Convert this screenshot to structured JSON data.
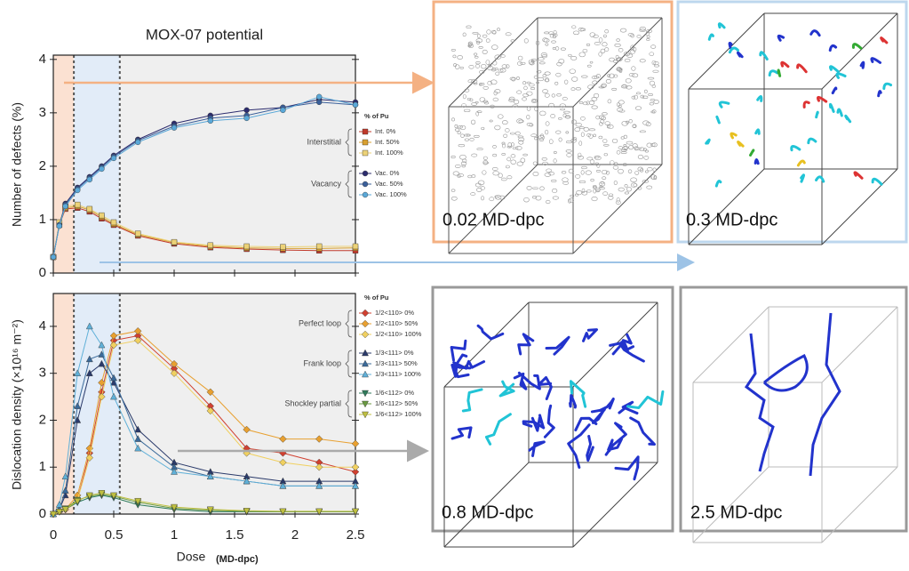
{
  "chart_data": [
    {
      "type": "line",
      "title": "MOX-07 potential",
      "ylabel": "Number of defects (%)",
      "x": [
        0,
        0.05,
        0.1,
        0.2,
        0.3,
        0.4,
        0.5,
        0.7,
        1.0,
        1.3,
        1.6,
        1.9,
        2.2,
        2.5
      ],
      "xlim": [
        0,
        2.5
      ],
      "xticks": [
        0,
        0.5,
        1,
        1.5,
        2,
        2.5
      ],
      "ylim": [
        0,
        4.08
      ],
      "yticks": [
        0,
        1,
        2,
        3,
        4
      ],
      "shaded_regions": [
        {
          "from": 0,
          "to": 0.17,
          "color": "#fbe1d2"
        },
        {
          "from": 0.17,
          "to": 0.55,
          "color": "#e2ecf8"
        },
        {
          "from": 0.55,
          "to": 2.5,
          "color": "#efefef"
        }
      ],
      "vlines": [
        0.17,
        0.55
      ],
      "legend_title": "% of Pu",
      "legend_groups": [
        "Interstitial",
        "Vacancy"
      ],
      "series": [
        {
          "name": "Int. 0%",
          "color": "#c0392b",
          "marker": "square",
          "values": [
            0.3,
            0.9,
            1.2,
            1.22,
            1.15,
            1.02,
            0.9,
            0.7,
            0.55,
            0.48,
            0.45,
            0.43,
            0.42,
            0.42
          ]
        },
        {
          "name": "Int. 50%",
          "color": "#d9a030",
          "marker": "square",
          "values": [
            0.3,
            0.92,
            1.22,
            1.25,
            1.18,
            1.05,
            0.92,
            0.72,
            0.57,
            0.5,
            0.47,
            0.46,
            0.46,
            0.47
          ]
        },
        {
          "name": "Int. 100%",
          "color": "#ecd277",
          "marker": "square",
          "values": [
            0.3,
            0.95,
            1.25,
            1.28,
            1.2,
            1.08,
            0.95,
            0.74,
            0.58,
            0.52,
            0.5,
            0.49,
            0.5,
            0.5
          ]
        },
        {
          "name": "Vac. 0%",
          "color": "#2c2c6e",
          "marker": "circle",
          "values": [
            0.3,
            0.9,
            1.3,
            1.6,
            1.8,
            2.0,
            2.2,
            2.5,
            2.8,
            2.95,
            3.05,
            3.1,
            3.25,
            3.2
          ]
        },
        {
          "name": "Vac. 50%",
          "color": "#3a5f9a",
          "marker": "circle",
          "values": [
            0.3,
            0.9,
            1.28,
            1.58,
            1.78,
            1.98,
            2.18,
            2.48,
            2.75,
            2.9,
            2.95,
            3.1,
            3.2,
            3.15
          ]
        },
        {
          "name": "Vac. 100%",
          "color": "#5aa8d8",
          "marker": "circle",
          "values": [
            0.3,
            0.88,
            1.25,
            1.55,
            1.75,
            1.95,
            2.15,
            2.45,
            2.72,
            2.85,
            2.9,
            3.05,
            3.3,
            3.15
          ]
        }
      ]
    },
    {
      "type": "line",
      "ylabel": "Dislocation density (×10¹⁶ m⁻²)",
      "xlabel": "Dose",
      "xlabel_unit": "(MD-dpc)",
      "x": [
        0,
        0.05,
        0.1,
        0.2,
        0.3,
        0.4,
        0.5,
        0.7,
        1.0,
        1.3,
        1.6,
        1.9,
        2.2,
        2.5
      ],
      "xlim": [
        0,
        2.5
      ],
      "xticks": [
        0,
        0.5,
        1,
        1.5,
        2,
        2.5
      ],
      "ylim": [
        0,
        4.7
      ],
      "yticks": [
        0,
        1,
        2,
        3,
        4
      ],
      "shaded_regions": [
        {
          "from": 0,
          "to": 0.17,
          "color": "#fbe1d2"
        },
        {
          "from": 0.17,
          "to": 0.55,
          "color": "#e2ecf8"
        },
        {
          "from": 0.55,
          "to": 2.5,
          "color": "#efefef"
        }
      ],
      "vlines": [
        0.17,
        0.55
      ],
      "legend_title": "% of Pu",
      "legend_groups": [
        "Perfect loop",
        "Frank loop",
        "Shockley partial"
      ],
      "series": [
        {
          "name": "1/2<110> 0%",
          "color": "#d04030",
          "marker": "diamond",
          "values": [
            0,
            0.05,
            0.1,
            0.3,
            1.3,
            2.6,
            3.7,
            3.8,
            3.1,
            2.3,
            1.4,
            1.3,
            1.1,
            0.9
          ]
        },
        {
          "name": "1/2<110> 50%",
          "color": "#e8a030",
          "marker": "diamond",
          "values": [
            0,
            0.05,
            0.1,
            0.4,
            1.4,
            2.8,
            3.8,
            3.9,
            3.2,
            2.6,
            1.8,
            1.6,
            1.6,
            1.5
          ]
        },
        {
          "name": "1/2<110> 100%",
          "color": "#f0d060",
          "marker": "diamond",
          "values": [
            0,
            0.05,
            0.1,
            0.3,
            1.2,
            2.5,
            3.6,
            3.7,
            3.0,
            2.2,
            1.3,
            1.1,
            1.0,
            1.0
          ]
        },
        {
          "name": "1/3<111> 0%",
          "color": "#2a3a6a",
          "marker": "triangle-up",
          "values": [
            0,
            0.1,
            0.4,
            2.0,
            3.0,
            3.2,
            2.8,
            1.8,
            1.1,
            0.9,
            0.8,
            0.7,
            0.7,
            0.7
          ]
        },
        {
          "name": "1/3<111> 50%",
          "color": "#3a6a9a",
          "marker": "triangle-up",
          "values": [
            0,
            0.1,
            0.5,
            2.3,
            3.3,
            3.4,
            2.9,
            1.6,
            1.0,
            0.8,
            0.7,
            0.6,
            0.6,
            0.6
          ]
        },
        {
          "name": "1/3<111> 100%",
          "color": "#60b0d8",
          "marker": "triangle-up",
          "values": [
            0,
            0.2,
            0.8,
            3.0,
            4.0,
            3.6,
            2.5,
            1.4,
            0.9,
            0.8,
            0.7,
            0.6,
            0.6,
            0.6
          ]
        },
        {
          "name": "1/6<112> 0%",
          "color": "#2e7a5a",
          "marker": "triangle-down",
          "values": [
            0,
            0.05,
            0.1,
            0.25,
            0.35,
            0.4,
            0.35,
            0.2,
            0.1,
            0.05,
            0.05,
            0.05,
            0.05,
            0.05
          ]
        },
        {
          "name": "1/6<112> 50%",
          "color": "#6a9a40",
          "marker": "triangle-down",
          "values": [
            0,
            0.05,
            0.12,
            0.3,
            0.38,
            0.42,
            0.38,
            0.25,
            0.12,
            0.08,
            0.06,
            0.05,
            0.05,
            0.05
          ]
        },
        {
          "name": "1/6<112> 100%",
          "color": "#c0c040",
          "marker": "triangle-down",
          "values": [
            0,
            0.05,
            0.1,
            0.28,
            0.4,
            0.45,
            0.4,
            0.28,
            0.15,
            0.1,
            0.07,
            0.06,
            0.06,
            0.06
          ]
        }
      ]
    }
  ],
  "panels": [
    {
      "label": "0.02 MD-dpc"
    },
    {
      "label": "0.3 MD-dpc"
    },
    {
      "label": "0.8 MD-dpc"
    },
    {
      "label": "2.5 MD-dpc"
    }
  ]
}
